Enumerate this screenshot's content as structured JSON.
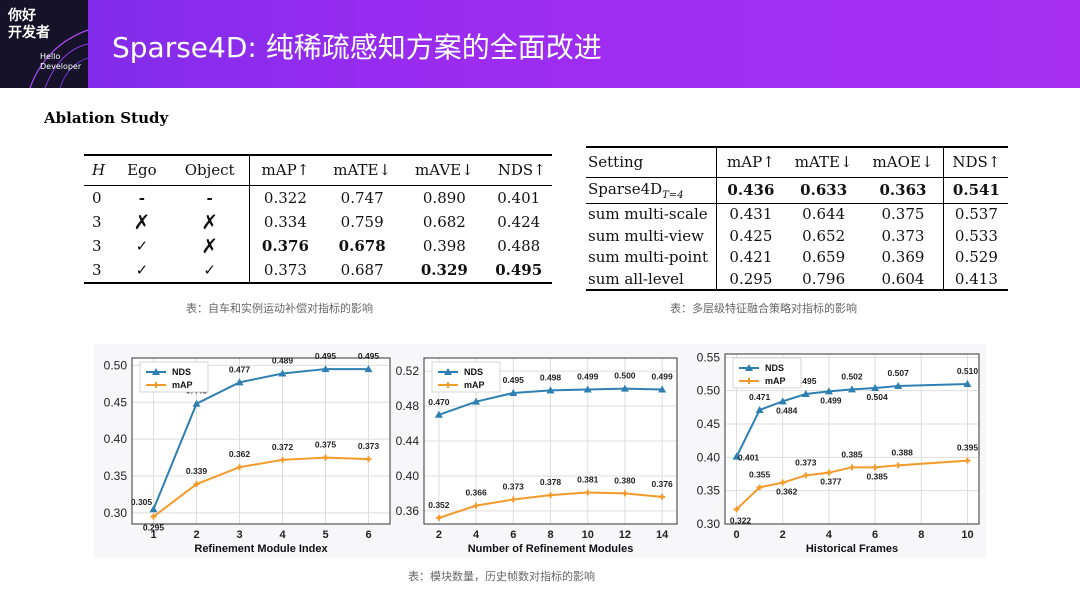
{
  "header": {
    "logo_cn_line1": "你好",
    "logo_cn_line2": "开发者",
    "logo_en_line1": "Hello",
    "logo_en_line2": "Developer",
    "title": "Sparse4D: 纯稀疏感知方案的全面改进",
    "bg_color": "#9a2cf0"
  },
  "section_label": "Ablation Study",
  "table1": {
    "headers": [
      "H",
      "Ego",
      "Object",
      "mAP↑",
      "mATE↓",
      "mAVE↓",
      "NDS↑"
    ],
    "rows": [
      [
        "0",
        "-",
        "-",
        "0.322",
        "0.747",
        "0.890",
        "0.401"
      ],
      [
        "3",
        "✗",
        "✗",
        "0.334",
        "0.759",
        "0.682",
        "0.424"
      ],
      [
        "3",
        "✓",
        "✗",
        "0.376",
        "0.678",
        "0.398",
        "0.488"
      ],
      [
        "3",
        "✓",
        "✓",
        "0.373",
        "0.687",
        "0.329",
        "0.495"
      ]
    ],
    "caption": "表：自车和实例运动补偿对指标的影响"
  },
  "table2": {
    "headers": [
      "Setting",
      "mAP↑",
      "mATE↓",
      "mAOE↓",
      "NDS↑"
    ],
    "rows": [
      [
        "Sparse4D",
        "0.436",
        "0.633",
        "0.363",
        "0.541"
      ],
      [
        "sum multi-scale",
        "0.431",
        "0.644",
        "0.375",
        "0.537"
      ],
      [
        "sum multi-view",
        "0.425",
        "0.652",
        "0.373",
        "0.533"
      ],
      [
        "sum multi-point",
        "0.421",
        "0.659",
        "0.369",
        "0.529"
      ],
      [
        "sum all-level",
        "0.295",
        "0.796",
        "0.604",
        "0.413"
      ]
    ],
    "first_row_subscript": "T=4",
    "caption": "表：多层级特征融合策略对指标的影响"
  },
  "bottom_caption": "表：模块数量，历史帧数对指标的影响",
  "chart_data": [
    {
      "type": "line",
      "xlabel": "Refinement Module Index",
      "ylabel": "",
      "x": [
        1,
        2,
        3,
        4,
        5,
        6
      ],
      "xticks": [
        "1",
        "2",
        "3",
        "4",
        "5",
        "6"
      ],
      "yticks": [
        "0.30",
        "0.35",
        "0.40",
        "0.45",
        "0.50"
      ],
      "ylim": [
        0.285,
        0.51
      ],
      "xlim": [
        0.5,
        6.5
      ],
      "legend": "top-left",
      "grid": true,
      "series": [
        {
          "name": "NDS",
          "values": [
            0.305,
            0.448,
            0.477,
            0.489,
            0.495,
            0.495
          ],
          "labels": [
            "0.305",
            "0.448",
            "0.477",
            "0.489",
            "0.495",
            "0.495"
          ],
          "color": "#2e80b3"
        },
        {
          "name": "mAP",
          "values": [
            0.295,
            0.339,
            0.362,
            0.372,
            0.375,
            0.373
          ],
          "labels": [
            "0.295",
            "0.339",
            "0.362",
            "0.372",
            "0.375",
            "0.373"
          ],
          "color": "#f39a2b"
        }
      ]
    },
    {
      "type": "line",
      "xlabel": "Number of Refinement Modules",
      "ylabel": "",
      "x": [
        2,
        4,
        6,
        8,
        10,
        12,
        14
      ],
      "xticks": [
        "2",
        "4",
        "6",
        "8",
        "10",
        "12",
        "14"
      ],
      "yticks": [
        "0.36",
        "0.40",
        "0.44",
        "0.48",
        "0.52"
      ],
      "ylim": [
        0.345,
        0.535
      ],
      "xlim": [
        1.2,
        14.8
      ],
      "legend": "top-left",
      "grid": true,
      "series": [
        {
          "name": "NDS",
          "values": [
            0.47,
            0.485,
            0.495,
            0.498,
            0.499,
            0.5,
            0.499
          ],
          "labels": [
            "0.470",
            "0.485",
            "0.495",
            "0.498",
            "0.499",
            "0.500",
            "0.499"
          ],
          "color": "#2e80b3"
        },
        {
          "name": "mAP",
          "values": [
            0.352,
            0.366,
            0.373,
            0.378,
            0.381,
            0.38,
            0.376
          ],
          "labels": [
            "0.352",
            "0.366",
            "0.373",
            "0.378",
            "0.381",
            "0.380",
            "0.376"
          ],
          "color": "#f39a2b"
        }
      ]
    },
    {
      "type": "line",
      "xlabel": "Historical Frames",
      "ylabel": "",
      "x": [
        0,
        1,
        2,
        3,
        4,
        5,
        6,
        7,
        10
      ],
      "xticks": [
        "0",
        "2",
        "4",
        "6",
        "8",
        "10"
      ],
      "xtick_values": [
        0,
        2,
        4,
        6,
        8,
        10
      ],
      "yticks": [
        "0.30",
        "0.35",
        "0.40",
        "0.45",
        "0.50",
        "0.55"
      ],
      "ylim": [
        0.3,
        0.555
      ],
      "xlim": [
        -0.5,
        10.5
      ],
      "legend": "top-left",
      "grid": true,
      "series": [
        {
          "name": "NDS",
          "values": [
            0.401,
            0.471,
            0.484,
            0.495,
            0.499,
            0.502,
            0.504,
            0.507,
            0.51
          ],
          "labels": [
            "0.401",
            "0.471",
            "0.484",
            "0.495",
            "0.499",
            "0.502",
            "0.504",
            "0.507",
            "0.510"
          ],
          "color": "#2e80b3"
        },
        {
          "name": "mAP",
          "values": [
            0.322,
            0.355,
            0.362,
            0.373,
            0.377,
            0.385,
            0.385,
            0.388,
            0.395
          ],
          "labels": [
            "0.322",
            "0.355",
            "0.362",
            "0.373",
            "0.377",
            "0.385",
            "0.385",
            "0.388",
            "0.395"
          ],
          "color": "#f39a2b"
        }
      ]
    }
  ]
}
